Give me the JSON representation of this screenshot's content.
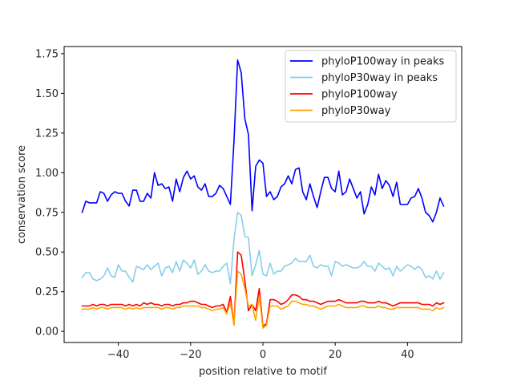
{
  "chart_data": {
    "type": "line",
    "title": "",
    "xlabel": "position relative to motif",
    "ylabel": "conservation score",
    "xlim": [
      -55,
      55
    ],
    "ylim": [
      -0.07,
      1.795
    ],
    "xticks": [
      -40,
      -20,
      0,
      20,
      40
    ],
    "xtick_labels": [
      "−40",
      "−20",
      "0",
      "20",
      "40"
    ],
    "yticks": [
      0.0,
      0.25,
      0.5,
      0.75,
      1.0,
      1.25,
      1.5,
      1.75
    ],
    "ytick_labels": [
      "0.00",
      "0.25",
      "0.50",
      "0.75",
      "1.00",
      "1.25",
      "1.50",
      "1.75"
    ],
    "grid": false,
    "legend_position": "top-right",
    "x_start": -50,
    "x_step": 1,
    "series": [
      {
        "name": "phyloP100way in peaks",
        "color": "#0000ff",
        "values": [
          0.75,
          0.82,
          0.81,
          0.81,
          0.81,
          0.88,
          0.87,
          0.82,
          0.86,
          0.88,
          0.87,
          0.87,
          0.82,
          0.79,
          0.89,
          0.89,
          0.82,
          0.82,
          0.87,
          0.84,
          1.0,
          0.92,
          0.93,
          0.9,
          0.91,
          0.82,
          0.96,
          0.88,
          0.97,
          1.01,
          0.96,
          0.98,
          0.91,
          0.89,
          0.93,
          0.85,
          0.85,
          0.87,
          0.92,
          0.9,
          0.85,
          0.8,
          1.2,
          1.71,
          1.63,
          1.34,
          1.24,
          0.76,
          1.04,
          1.08,
          1.06,
          0.85,
          0.88,
          0.83,
          0.85,
          0.91,
          0.93,
          0.98,
          0.93,
          1.02,
          1.03,
          0.88,
          0.83,
          0.93,
          0.85,
          0.78,
          0.88,
          0.97,
          0.97,
          0.9,
          0.88,
          1.01,
          0.86,
          0.88,
          0.96,
          0.9,
          0.84,
          0.88,
          0.74,
          0.8,
          0.91,
          0.86,
          0.99,
          0.9,
          0.95,
          0.92,
          0.85,
          0.94,
          0.8,
          0.8,
          0.8,
          0.84,
          0.85,
          0.9,
          0.84,
          0.75,
          0.73,
          0.69,
          0.75,
          0.84,
          0.79
        ]
      },
      {
        "name": "phyloP30way in peaks",
        "color": "#87ceeb",
        "values": [
          0.34,
          0.37,
          0.37,
          0.33,
          0.32,
          0.33,
          0.35,
          0.4,
          0.35,
          0.34,
          0.42,
          0.38,
          0.38,
          0.34,
          0.31,
          0.41,
          0.4,
          0.39,
          0.42,
          0.39,
          0.41,
          0.43,
          0.35,
          0.4,
          0.41,
          0.37,
          0.44,
          0.38,
          0.45,
          0.43,
          0.4,
          0.45,
          0.36,
          0.38,
          0.42,
          0.38,
          0.37,
          0.38,
          0.38,
          0.41,
          0.43,
          0.3,
          0.58,
          0.75,
          0.73,
          0.6,
          0.59,
          0.35,
          0.42,
          0.51,
          0.36,
          0.35,
          0.43,
          0.36,
          0.38,
          0.38,
          0.41,
          0.42,
          0.43,
          0.46,
          0.44,
          0.44,
          0.44,
          0.48,
          0.41,
          0.4,
          0.42,
          0.41,
          0.41,
          0.35,
          0.44,
          0.43,
          0.41,
          0.42,
          0.41,
          0.4,
          0.4,
          0.41,
          0.44,
          0.41,
          0.41,
          0.38,
          0.43,
          0.41,
          0.39,
          0.4,
          0.35,
          0.41,
          0.38,
          0.4,
          0.42,
          0.41,
          0.39,
          0.41,
          0.39,
          0.34,
          0.35,
          0.33,
          0.38,
          0.33,
          0.37
        ]
      },
      {
        "name": "phyloP100way",
        "color": "#ff0000",
        "values": [
          0.16,
          0.16,
          0.16,
          0.17,
          0.16,
          0.17,
          0.17,
          0.16,
          0.17,
          0.17,
          0.17,
          0.17,
          0.16,
          0.17,
          0.16,
          0.17,
          0.16,
          0.18,
          0.17,
          0.18,
          0.17,
          0.17,
          0.16,
          0.17,
          0.17,
          0.16,
          0.17,
          0.17,
          0.18,
          0.18,
          0.19,
          0.19,
          0.18,
          0.17,
          0.17,
          0.16,
          0.15,
          0.16,
          0.16,
          0.17,
          0.12,
          0.22,
          0.04,
          0.5,
          0.48,
          0.32,
          0.13,
          0.17,
          0.13,
          0.27,
          0.03,
          0.05,
          0.2,
          0.2,
          0.19,
          0.17,
          0.18,
          0.2,
          0.23,
          0.23,
          0.22,
          0.2,
          0.2,
          0.19,
          0.19,
          0.18,
          0.17,
          0.18,
          0.19,
          0.19,
          0.19,
          0.2,
          0.19,
          0.18,
          0.18,
          0.18,
          0.18,
          0.19,
          0.19,
          0.18,
          0.18,
          0.18,
          0.19,
          0.18,
          0.18,
          0.17,
          0.16,
          0.17,
          0.18,
          0.18,
          0.18,
          0.18,
          0.18,
          0.18,
          0.17,
          0.17,
          0.17,
          0.16,
          0.18,
          0.17,
          0.18
        ]
      },
      {
        "name": "phyloP30way",
        "color": "#ffa500",
        "values": [
          0.14,
          0.14,
          0.14,
          0.15,
          0.14,
          0.15,
          0.15,
          0.14,
          0.15,
          0.15,
          0.15,
          0.15,
          0.14,
          0.15,
          0.14,
          0.15,
          0.14,
          0.15,
          0.15,
          0.15,
          0.15,
          0.15,
          0.14,
          0.15,
          0.15,
          0.14,
          0.15,
          0.15,
          0.16,
          0.16,
          0.16,
          0.16,
          0.16,
          0.15,
          0.15,
          0.14,
          0.13,
          0.14,
          0.14,
          0.15,
          0.11,
          0.18,
          0.04,
          0.38,
          0.36,
          0.27,
          0.16,
          0.17,
          0.07,
          0.22,
          0.02,
          0.04,
          0.16,
          0.16,
          0.16,
          0.14,
          0.15,
          0.16,
          0.19,
          0.19,
          0.18,
          0.17,
          0.17,
          0.16,
          0.16,
          0.15,
          0.14,
          0.15,
          0.16,
          0.16,
          0.16,
          0.17,
          0.16,
          0.15,
          0.15,
          0.15,
          0.15,
          0.16,
          0.16,
          0.15,
          0.15,
          0.15,
          0.16,
          0.15,
          0.15,
          0.14,
          0.14,
          0.15,
          0.15,
          0.15,
          0.15,
          0.15,
          0.15,
          0.15,
          0.14,
          0.14,
          0.14,
          0.13,
          0.15,
          0.14,
          0.15
        ]
      }
    ]
  }
}
